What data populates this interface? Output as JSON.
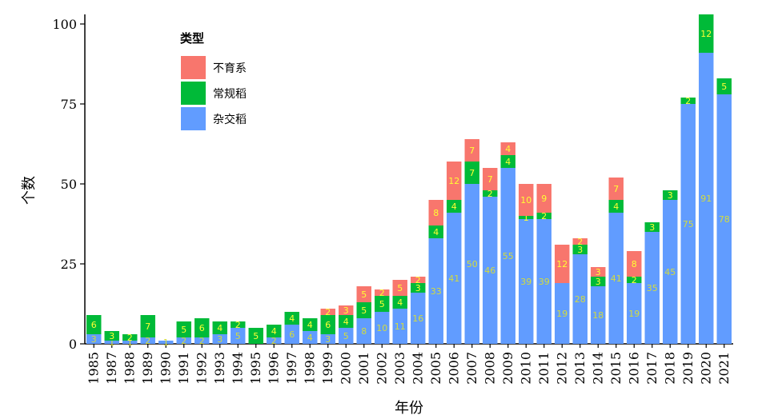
{
  "chart_data": {
    "type": "bar",
    "stacked": true,
    "xlabel": "年份",
    "ylabel": "个数",
    "ylim": [
      0,
      103
    ],
    "yticks": [
      0,
      25,
      50,
      75,
      100
    ],
    "categories": [
      "1985",
      "1987",
      "1988",
      "1989",
      "1990",
      "1991",
      "1992",
      "1993",
      "1994",
      "1995",
      "1996",
      "1997",
      "1998",
      "1999",
      "2000",
      "2001",
      "2002",
      "2003",
      "2004",
      "2005",
      "2006",
      "2007",
      "2008",
      "2009",
      "2010",
      "2011",
      "2012",
      "2013",
      "2014",
      "2015",
      "2016",
      "2017",
      "2018",
      "2019",
      "2020",
      "2021"
    ],
    "series": [
      {
        "name": "杂交稻",
        "color": "#619CFF",
        "label_color": "#d4dc3c",
        "values": [
          3,
          1,
          1,
          2,
          1,
          2,
          2,
          3,
          5,
          0,
          2,
          6,
          4,
          3,
          5,
          8,
          10,
          11,
          16,
          33,
          41,
          50,
          46,
          55,
          39,
          39,
          19,
          28,
          18,
          41,
          19,
          35,
          45,
          75,
          91,
          78
        ]
      },
      {
        "name": "常规稻",
        "color": "#00BA38",
        "label_color": "#ffff33",
        "values": [
          6,
          3,
          2,
          7,
          0,
          5,
          6,
          4,
          2,
          5,
          4,
          4,
          4,
          6,
          4,
          5,
          5,
          4,
          3,
          4,
          4,
          7,
          2,
          4,
          1,
          2,
          0,
          3,
          3,
          4,
          2,
          3,
          3,
          2,
          12,
          5
        ]
      },
      {
        "name": "不育系",
        "color": "#F8766D",
        "label_color": "#ffff33",
        "values": [
          0,
          0,
          0,
          0,
          0,
          0,
          0,
          0,
          0,
          0,
          0,
          0,
          0,
          2,
          3,
          5,
          2,
          5,
          2,
          8,
          12,
          7,
          7,
          4,
          10,
          9,
          12,
          2,
          3,
          7,
          8,
          0,
          0,
          0,
          0,
          0
        ]
      }
    ],
    "legend": {
      "title": "类型",
      "position": "top-left",
      "order": [
        "不育系",
        "常规稻",
        "杂交稻"
      ]
    },
    "grid": false
  }
}
